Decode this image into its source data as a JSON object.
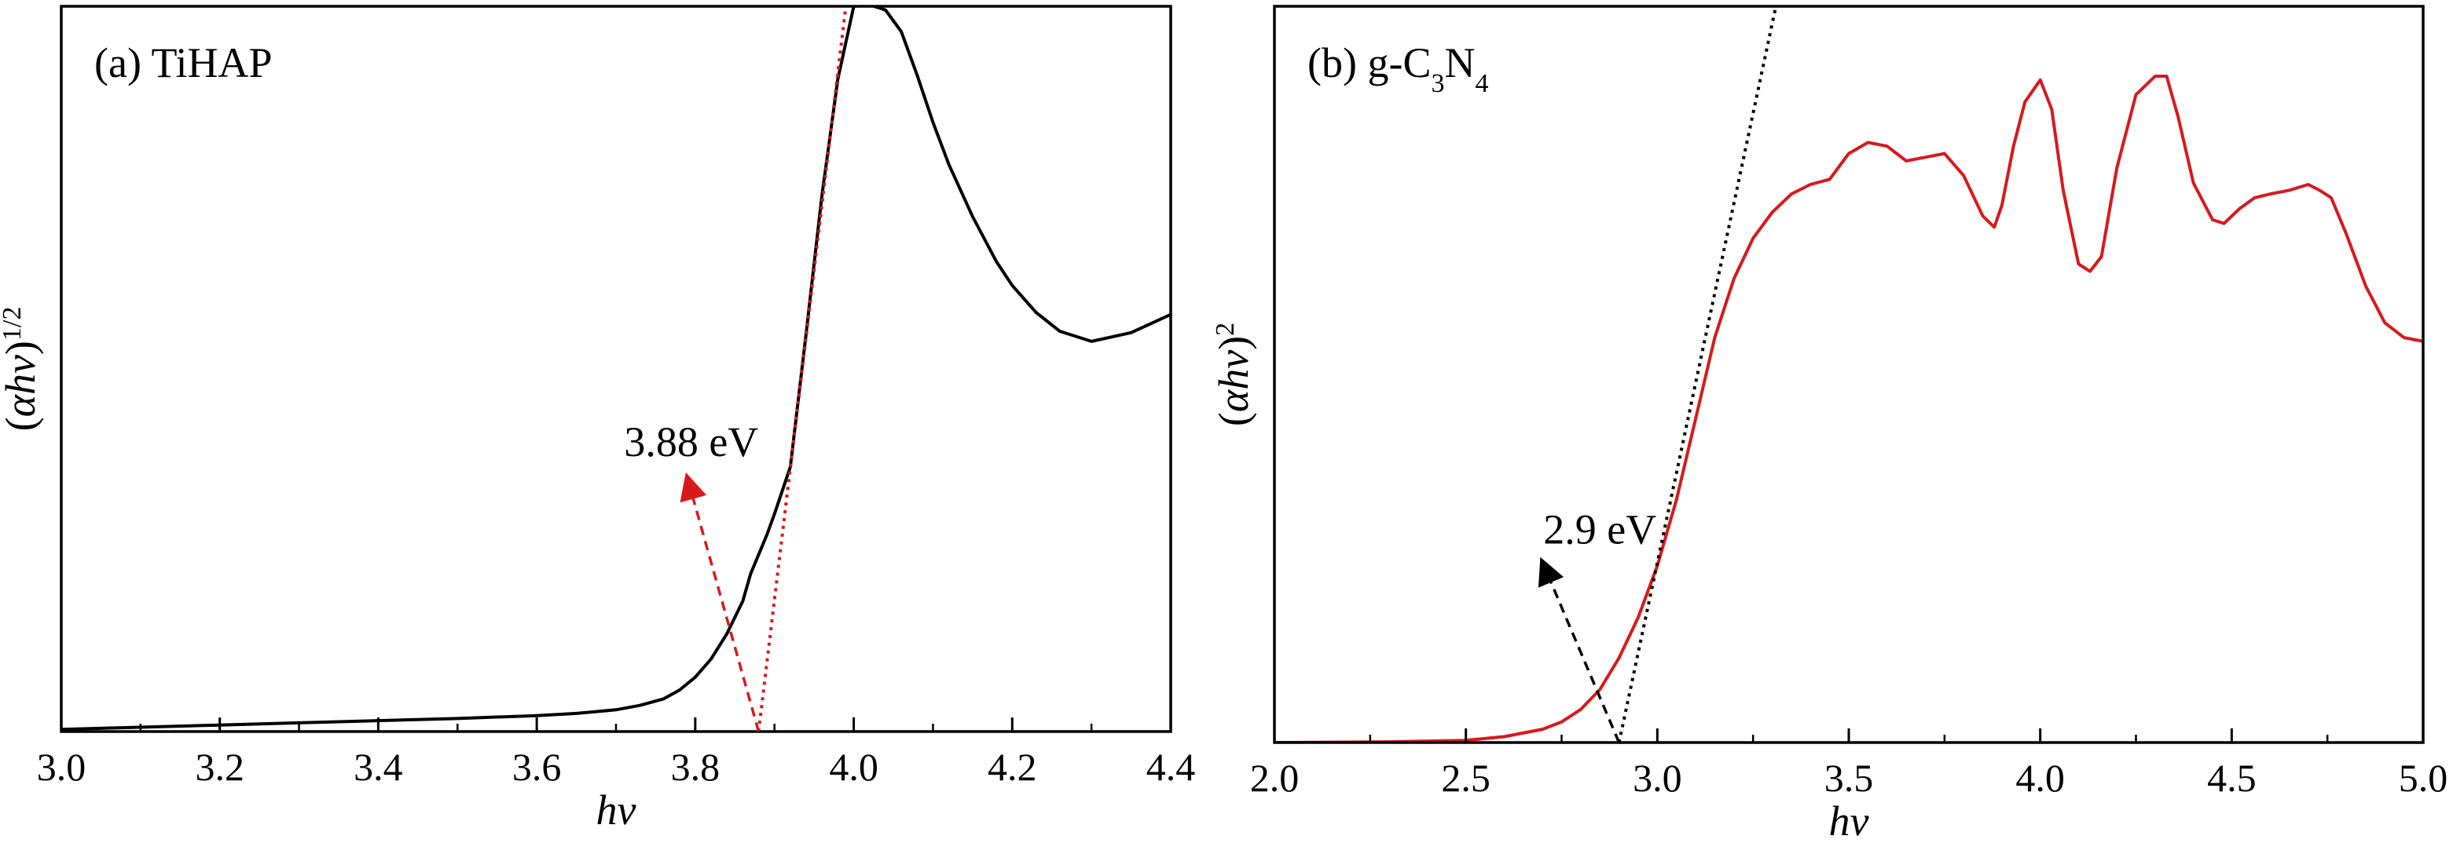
{
  "chart_data": [
    {
      "id": "a",
      "type": "line",
      "title": "(a) TiHAP",
      "title_parts": [
        {
          "text": "(a) TiHAP",
          "role": "normal"
        }
      ],
      "xlabel": "hν",
      "ylabel_parts": [
        {
          "text": "(",
          "role": "normal"
        },
        {
          "text": "αhν",
          "role": "italic"
        },
        {
          "text": ")",
          "role": "normal"
        },
        {
          "text": "1/2",
          "role": "sup"
        }
      ],
      "xlim": [
        3.0,
        4.4
      ],
      "ylim": [
        0,
        1
      ],
      "x_ticks": [
        3.0,
        3.2,
        3.4,
        3.6,
        3.8,
        4.0,
        4.2,
        4.4
      ],
      "x_tick_labels": [
        "3.0",
        "3.2",
        "3.4",
        "3.6",
        "3.8",
        "4.0",
        "4.2",
        "4.4"
      ],
      "x_minor_ticks": [
        3.1,
        3.3,
        3.5,
        3.7,
        3.9,
        4.1,
        4.3
      ],
      "y_ticks_shown": false,
      "grid": false,
      "series": [
        {
          "color": "#000000",
          "style": "solid",
          "x": [
            3.0,
            3.1,
            3.2,
            3.3,
            3.4,
            3.5,
            3.6,
            3.65,
            3.7,
            3.73,
            3.76,
            3.78,
            3.8,
            3.82,
            3.84,
            3.86,
            3.87,
            3.89,
            3.9,
            3.92,
            3.94,
            3.96,
            3.98,
            4.0,
            4.02,
            4.04,
            4.06,
            4.08,
            4.1,
            4.12,
            4.15,
            4.18,
            4.2,
            4.23,
            4.26,
            4.3,
            4.35,
            4.4
          ],
          "y": [
            0.003,
            0.006,
            0.009,
            0.012,
            0.015,
            0.018,
            0.022,
            0.025,
            0.03,
            0.036,
            0.045,
            0.057,
            0.075,
            0.1,
            0.135,
            0.18,
            0.218,
            0.27,
            0.3,
            0.365,
            0.55,
            0.74,
            0.9,
            1.0,
            1.002,
            0.995,
            0.965,
            0.905,
            0.84,
            0.782,
            0.71,
            0.648,
            0.615,
            0.578,
            0.552,
            0.538,
            0.55,
            0.575
          ]
        },
        {
          "color": "#d7191c",
          "style": "dotted",
          "x": [
            3.88,
            3.995
          ],
          "y": [
            0.0,
            1.045
          ]
        }
      ],
      "annotations": [
        {
          "text": "3.88 eV",
          "x": 3.795,
          "y": 0.38,
          "arrow_from": [
            3.88,
            0.0
          ],
          "arrow_to": [
            3.79,
            0.35
          ],
          "color": "#d7191c",
          "style": "dashed"
        }
      ]
    },
    {
      "id": "b",
      "type": "line",
      "title": "(b) g-C3N4",
      "title_parts": [
        {
          "text": "(b) g-C",
          "role": "normal"
        },
        {
          "text": "3",
          "role": "sub"
        },
        {
          "text": "N",
          "role": "normal"
        },
        {
          "text": "4",
          "role": "sub"
        }
      ],
      "xlabel": "hν",
      "ylabel_parts": [
        {
          "text": "(",
          "role": "normal"
        },
        {
          "text": "αhν",
          "role": "italic"
        },
        {
          "text": ")",
          "role": "normal"
        },
        {
          "text": "2",
          "role": "sup"
        }
      ],
      "xlim": [
        2.0,
        5.0
      ],
      "ylim": [
        0,
        1
      ],
      "x_ticks": [
        2.0,
        2.5,
        3.0,
        3.5,
        4.0,
        4.5,
        5.0
      ],
      "x_tick_labels": [
        "2.0",
        "2.5",
        "3.0",
        "3.5",
        "4.0",
        "4.5",
        "5.0"
      ],
      "x_minor_ticks": [
        2.25,
        2.75,
        3.25,
        3.75,
        4.25,
        4.75
      ],
      "y_ticks_shown": false,
      "grid": false,
      "series": [
        {
          "color": "#d7191c",
          "style": "solid",
          "x": [
            2.0,
            2.3,
            2.5,
            2.6,
            2.7,
            2.75,
            2.8,
            2.85,
            2.9,
            2.95,
            3.0,
            3.05,
            3.1,
            3.15,
            3.2,
            3.25,
            3.3,
            3.35,
            3.4,
            3.45,
            3.5,
            3.55,
            3.6,
            3.65,
            3.7,
            3.75,
            3.8,
            3.85,
            3.88,
            3.9,
            3.93,
            3.96,
            4.0,
            4.03,
            4.06,
            4.1,
            4.13,
            4.16,
            4.2,
            4.25,
            4.3,
            4.33,
            4.36,
            4.4,
            4.45,
            4.48,
            4.52,
            4.56,
            4.6,
            4.65,
            4.7,
            4.73,
            4.76,
            4.8,
            4.85,
            4.9,
            4.95,
            5.0
          ],
          "y": [
            0.0,
            0.001,
            0.003,
            0.008,
            0.018,
            0.028,
            0.045,
            0.072,
            0.115,
            0.17,
            0.24,
            0.33,
            0.44,
            0.55,
            0.63,
            0.685,
            0.72,
            0.745,
            0.758,
            0.765,
            0.8,
            0.815,
            0.81,
            0.79,
            0.795,
            0.8,
            0.77,
            0.715,
            0.7,
            0.73,
            0.81,
            0.87,
            0.9,
            0.86,
            0.75,
            0.65,
            0.64,
            0.66,
            0.78,
            0.88,
            0.905,
            0.905,
            0.85,
            0.76,
            0.71,
            0.705,
            0.725,
            0.74,
            0.745,
            0.75,
            0.758,
            0.75,
            0.74,
            0.69,
            0.62,
            0.57,
            0.55,
            0.545
          ]
        },
        {
          "color": "#000000",
          "style": "dotted",
          "x": [
            2.9,
            3.33
          ],
          "y": [
            0.0,
            1.05
          ]
        }
      ],
      "annotations": [
        {
          "text": "2.9 eV",
          "x": 2.85,
          "y": 0.27,
          "arrow_from": [
            2.9,
            0.0
          ],
          "arrow_to": [
            2.7,
            0.245
          ],
          "color": "#000000",
          "style": "dashed"
        }
      ]
    }
  ]
}
